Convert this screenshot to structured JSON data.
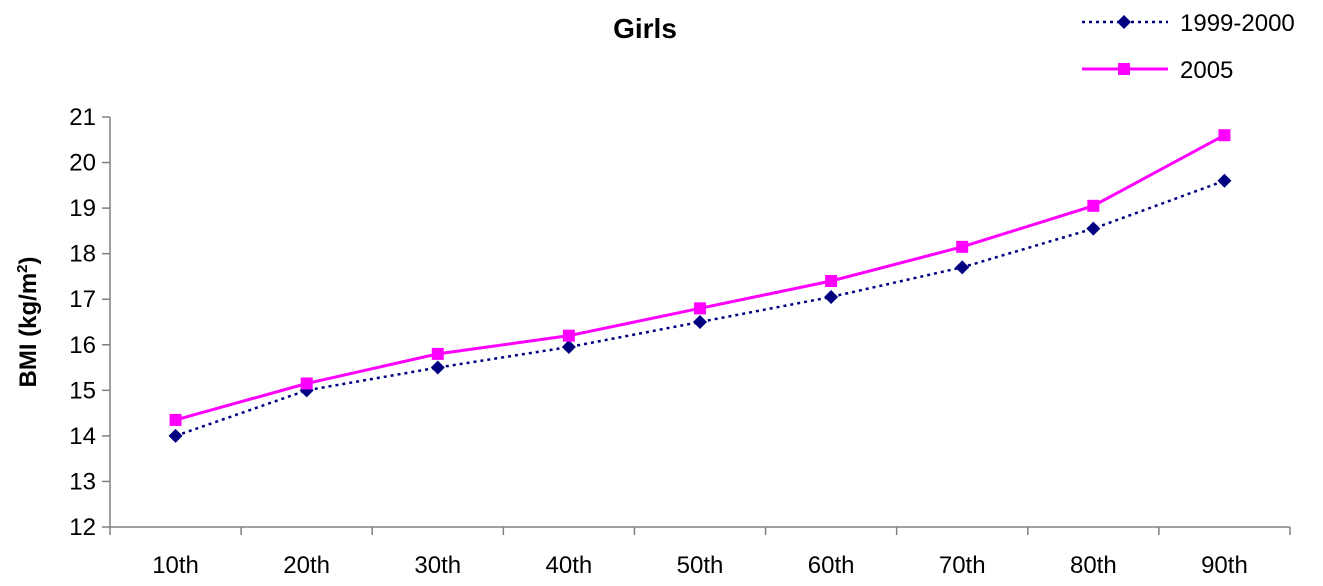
{
  "chart_data": {
    "type": "line",
    "title": "Girls",
    "xlabel": "",
    "ylabel": "BMI (kg/m",
    "ylabel_sup": "2",
    "ylabel_close": ")",
    "categories": [
      "10th",
      "20th",
      "30th",
      "40th",
      "50th",
      "60th",
      "70th",
      "80th",
      "90th"
    ],
    "ylim": [
      12,
      21
    ],
    "yticks": [
      12,
      13,
      14,
      15,
      16,
      17,
      18,
      19,
      20,
      21
    ],
    "grid": false,
    "legend_position": "top-right",
    "series": [
      {
        "name": "1999-2000",
        "values": [
          14.0,
          15.0,
          15.5,
          15.95,
          16.5,
          17.05,
          17.7,
          18.55,
          19.6
        ],
        "color": "#000080",
        "line_style": "dotted",
        "marker": "diamond"
      },
      {
        "name": "2005",
        "values": [
          14.35,
          15.15,
          15.8,
          16.2,
          16.8,
          17.4,
          18.15,
          19.05,
          20.6
        ],
        "color": "#ff00ff",
        "line_style": "solid",
        "marker": "square"
      }
    ]
  }
}
